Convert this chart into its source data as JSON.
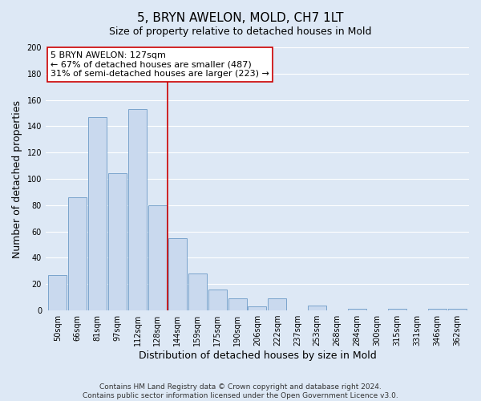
{
  "title": "5, BRYN AWELON, MOLD, CH7 1LT",
  "subtitle": "Size of property relative to detached houses in Mold",
  "xlabel": "Distribution of detached houses by size in Mold",
  "ylabel": "Number of detached properties",
  "bar_labels": [
    "50sqm",
    "66sqm",
    "81sqm",
    "97sqm",
    "112sqm",
    "128sqm",
    "144sqm",
    "159sqm",
    "175sqm",
    "190sqm",
    "206sqm",
    "222sqm",
    "237sqm",
    "253sqm",
    "268sqm",
    "284sqm",
    "300sqm",
    "315sqm",
    "331sqm",
    "346sqm",
    "362sqm"
  ],
  "bar_values": [
    27,
    86,
    147,
    104,
    153,
    80,
    55,
    28,
    16,
    9,
    3,
    9,
    0,
    4,
    0,
    1,
    0,
    1,
    0,
    1,
    1
  ],
  "bar_color": "#c9d9ee",
  "bar_edge_color": "#7aa4cc",
  "vline_color": "#cc0000",
  "annotation_title": "5 BRYN AWELON: 127sqm",
  "annotation_line1": "← 67% of detached houses are smaller (487)",
  "annotation_line2": "31% of semi-detached houses are larger (223) →",
  "annotation_box_facecolor": "#ffffff",
  "annotation_box_edgecolor": "#cc0000",
  "ylim": [
    0,
    200
  ],
  "yticks": [
    0,
    20,
    40,
    60,
    80,
    100,
    120,
    140,
    160,
    180,
    200
  ],
  "footer_line1": "Contains HM Land Registry data © Crown copyright and database right 2024.",
  "footer_line2": "Contains public sector information licensed under the Open Government Licence v3.0.",
  "bg_color": "#dde8f5",
  "plot_bg_color": "#dde8f5",
  "grid_color": "#ffffff",
  "title_fontsize": 11,
  "subtitle_fontsize": 9,
  "axis_label_fontsize": 9,
  "tick_fontsize": 7,
  "annotation_fontsize": 8,
  "footer_fontsize": 6.5,
  "vline_x_index": 5
}
